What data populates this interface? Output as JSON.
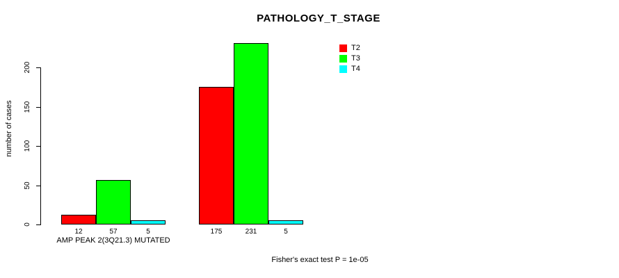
{
  "chart_data": {
    "type": "bar",
    "title": "PATHOLOGY_T_STAGE",
    "ylabel": "number of cases",
    "xlabel": "",
    "categories": [
      "AMP PEAK 2(3Q21.3) MUTATED",
      ""
    ],
    "series": [
      {
        "name": "T2",
        "color": "#ff0000",
        "values": [
          12,
          175
        ]
      },
      {
        "name": "T3",
        "color": "#00ff00",
        "values": [
          57,
          231
        ]
      },
      {
        "name": "T4",
        "color": "#00ffff",
        "values": [
          5,
          5
        ]
      }
    ],
    "yticks": [
      0,
      50,
      100,
      150,
      200
    ],
    "ylim": [
      0,
      235
    ],
    "bar_labels": true,
    "grid": false,
    "legend_position": "top-right",
    "annotation": "Fisher's exact test P = 1e-05",
    "colors": {
      "axis": "#000000",
      "bar_border": "#000000",
      "background": "#ffffff",
      "text": "#000000"
    }
  }
}
